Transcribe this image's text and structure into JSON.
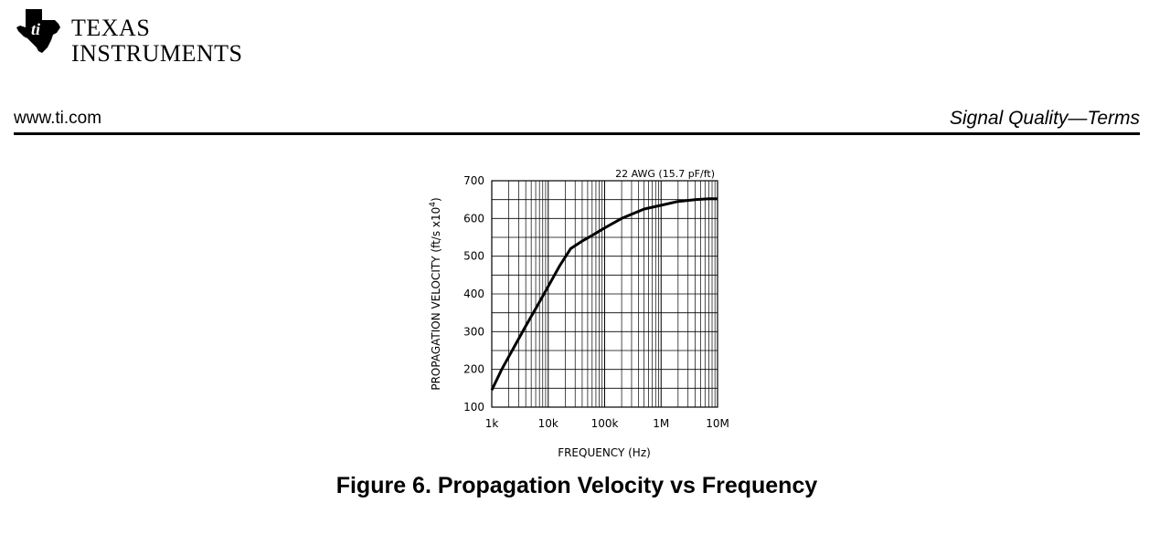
{
  "header": {
    "logo_line1": "Texas",
    "logo_line2": "Instruments",
    "site": "www.ti.com",
    "section": "Signal Quality—Terms"
  },
  "figure": {
    "caption": "Figure 6. Propagation Velocity vs Frequency"
  },
  "chart_data": {
    "type": "line",
    "title": "",
    "annotation": "22 AWG (15.7 pF/ft)",
    "xlabel": "FREQUENCY (Hz)",
    "ylabel": "PROPAGATION VELOCITY (ft/s x10^4)",
    "xscale": "log",
    "xlim": [
      1000,
      10000000
    ],
    "ylim": [
      100,
      700
    ],
    "x_ticks": [
      {
        "value": 1000,
        "label": "1k"
      },
      {
        "value": 10000,
        "label": "10k"
      },
      {
        "value": 100000,
        "label": "100k"
      },
      {
        "value": 1000000,
        "label": "1M"
      },
      {
        "value": 10000000,
        "label": "10M"
      }
    ],
    "y_ticks": [
      100,
      200,
      300,
      400,
      500,
      600,
      700
    ],
    "grid": true,
    "series": [
      {
        "x": [
          1000,
          1500,
          2500,
          4000,
          6500,
          10000,
          16000,
          25000,
          40000,
          60000,
          100000,
          200000,
          500000,
          1000000,
          2000000,
          4000000,
          7000000,
          10000000
        ],
        "y": [
          145,
          200,
          260,
          315,
          370,
          420,
          475,
          520,
          540,
          555,
          575,
          600,
          625,
          635,
          645,
          650,
          652,
          652
        ]
      }
    ],
    "color": "#000000"
  }
}
